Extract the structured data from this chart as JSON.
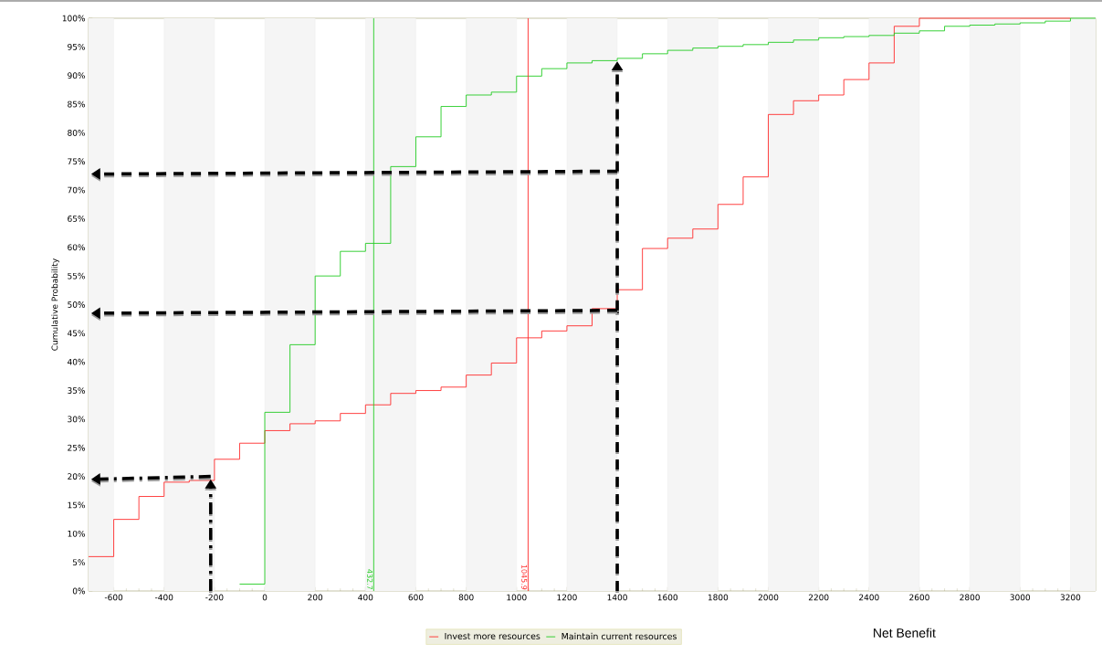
{
  "chart_data": {
    "type": "step",
    "xlabel": "Net Benefit",
    "ylabel": "Cumulative Probability",
    "xlim": [
      -700,
      3300
    ],
    "ylim": [
      0,
      100
    ],
    "xticks": [
      -600,
      -400,
      -200,
      0,
      200,
      400,
      600,
      800,
      1000,
      1200,
      1400,
      1600,
      1800,
      2000,
      2200,
      2400,
      2600,
      2800,
      3000,
      3200
    ],
    "yticks": [
      {
        "value": 0,
        "label": "0%"
      },
      {
        "value": 5,
        "label": "5%"
      },
      {
        "value": 10,
        "label": "10%"
      },
      {
        "value": 15,
        "label": "15%"
      },
      {
        "value": 20,
        "label": "20%"
      },
      {
        "value": 25,
        "label": "25%"
      },
      {
        "value": 30,
        "label": "30%"
      },
      {
        "value": 35,
        "label": "35%"
      },
      {
        "value": 40,
        "label": "40%"
      },
      {
        "value": 45,
        "label": "45%"
      },
      {
        "value": 50,
        "label": "50%"
      },
      {
        "value": 55,
        "label": "55%"
      },
      {
        "value": 60,
        "label": "60%"
      },
      {
        "value": 65,
        "label": "65%"
      },
      {
        "value": 70,
        "label": "70%"
      },
      {
        "value": 75,
        "label": "75%"
      },
      {
        "value": 80,
        "label": "80%"
      },
      {
        "value": 85,
        "label": "85%"
      },
      {
        "value": 90,
        "label": "90%"
      },
      {
        "value": 95,
        "label": "95%"
      },
      {
        "value": 100,
        "label": "100%"
      }
    ],
    "series": [
      {
        "name": "Invest more resources",
        "color": "#ff2a2a",
        "x": [
          -700,
          -600,
          -500,
          -400,
          -300,
          -200,
          -100,
          0,
          100,
          200,
          300,
          400,
          500,
          600,
          700,
          800,
          900,
          1000,
          1100,
          1200,
          1300,
          1400,
          1500,
          1600,
          1700,
          1800,
          1900,
          2000,
          2100,
          2200,
          2300,
          2400,
          2500,
          2600,
          3200
        ],
        "values": [
          6,
          12.5,
          16.5,
          19,
          19.3,
          23,
          25.8,
          28,
          29.2,
          29.7,
          31,
          32.5,
          34.5,
          35,
          35.6,
          37.7,
          39.8,
          44.2,
          45.4,
          46.3,
          49.3,
          52.6,
          59.8,
          61.6,
          63.2,
          67.5,
          72.3,
          83.2,
          85.6,
          86.6,
          89.3,
          92.2,
          98.6,
          100,
          100
        ]
      },
      {
        "name": "Maintain current resources",
        "color": "#22cc22",
        "x": [
          -100,
          0,
          100,
          200,
          300,
          400,
          500,
          600,
          700,
          800,
          900,
          1000,
          1100,
          1200,
          1300,
          1400,
          1500,
          1600,
          1700,
          1800,
          1900,
          2000,
          2100,
          2200,
          2300,
          2400,
          2500,
          2600,
          2700,
          2800,
          2900,
          3000,
          3100,
          3200,
          3300
        ],
        "values": [
          1.2,
          31.2,
          43,
          55,
          59.3,
          60.7,
          74.1,
          79.3,
          84.6,
          86.6,
          87.1,
          89.9,
          91.2,
          92.2,
          92.6,
          93,
          93.8,
          94.4,
          94.8,
          95.1,
          95.4,
          95.8,
          96.2,
          96.6,
          96.8,
          97,
          97.4,
          97.8,
          98.6,
          98.8,
          99,
          99.2,
          99.5,
          100,
          100
        ]
      }
    ],
    "ref_lines": [
      {
        "axis": "x",
        "value": 432.7,
        "label": "432.7",
        "color": "#22cc22"
      },
      {
        "axis": "x",
        "value": 1045.9,
        "label": "1045.9",
        "color": "#ff2a2a"
      }
    ],
    "grid": "x",
    "legend": "bottom"
  }
}
